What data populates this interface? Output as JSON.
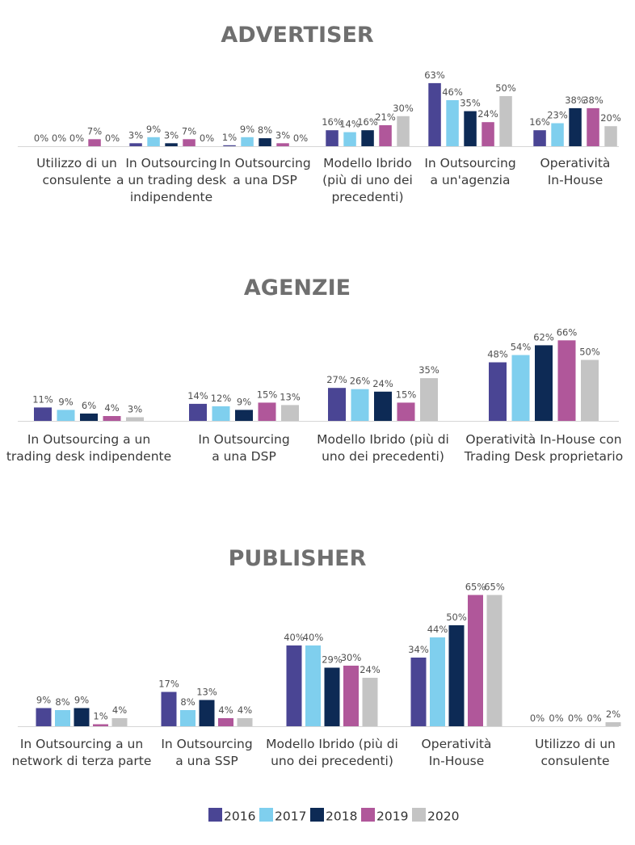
{
  "chart_data": [
    {
      "type": "bar",
      "title": "ADVERTISER",
      "categories": [
        [
          "Utilizzo di un",
          "consulente"
        ],
        [
          "In Outsourcing",
          "a un trading desk",
          "indipendente"
        ],
        [
          "In Outsourcing",
          "a una DSP"
        ],
        [
          "Modello Ibrido",
          "(più di uno dei",
          "precedenti)"
        ],
        [
          "In Outsourcing",
          "a un'agenzia"
        ],
        [
          "Operatività",
          "In-House"
        ]
      ],
      "series": [
        {
          "name": "2016",
          "values": [
            0,
            3,
            1,
            16,
            63,
            16
          ]
        },
        {
          "name": "2017",
          "values": [
            0,
            9,
            9,
            14,
            46,
            23
          ]
        },
        {
          "name": "2018",
          "values": [
            0,
            3,
            8,
            16,
            35,
            38
          ]
        },
        {
          "name": "2019",
          "values": [
            7,
            7,
            3,
            21,
            24,
            38
          ]
        },
        {
          "name": "2020",
          "values": [
            0,
            0,
            0,
            30,
            50,
            20
          ]
        }
      ],
      "unit": "%"
    },
    {
      "type": "bar",
      "title": "AGENZIE",
      "categories": [
        [
          "In Outsourcing a un",
          "trading desk indipendente"
        ],
        [
          "In Outsourcing",
          "a una DSP"
        ],
        [
          "Modello Ibrido (più di",
          "uno dei precedenti)"
        ],
        [
          "Operatività In-House con",
          "Trading Desk proprietario"
        ]
      ],
      "series": [
        {
          "name": "2016",
          "values": [
            11,
            14,
            27,
            48
          ]
        },
        {
          "name": "2017",
          "values": [
            9,
            12,
            26,
            54
          ]
        },
        {
          "name": "2018",
          "values": [
            6,
            9,
            24,
            62
          ]
        },
        {
          "name": "2019",
          "values": [
            4,
            15,
            15,
            66
          ]
        },
        {
          "name": "2020",
          "values": [
            3,
            13,
            35,
            50
          ]
        }
      ],
      "unit": "%"
    },
    {
      "type": "bar",
      "title": "PUBLISHER",
      "categories": [
        [
          "In Outsourcing a un",
          "network di terza parte"
        ],
        [
          "In Outsourcing",
          "a una SSP"
        ],
        [
          "Modello Ibrido (più di",
          "uno dei precedenti)"
        ],
        [
          "Operatività",
          "In-House"
        ],
        [
          "Utilizzo di un",
          "consulente"
        ]
      ],
      "series": [
        {
          "name": "2016",
          "values": [
            9,
            17,
            40,
            34,
            0
          ]
        },
        {
          "name": "2017",
          "values": [
            8,
            8,
            40,
            44,
            0
          ]
        },
        {
          "name": "2018",
          "values": [
            9,
            13,
            29,
            50,
            0
          ]
        },
        {
          "name": "2019",
          "values": [
            1,
            4,
            30,
            65,
            0
          ]
        },
        {
          "name": "2020",
          "values": [
            4,
            4,
            24,
            65,
            2
          ]
        }
      ],
      "unit": "%"
    }
  ],
  "legend": {
    "position": "bottom",
    "items": [
      {
        "label": "2016",
        "color": "#4a4594"
      },
      {
        "label": "2017",
        "color": "#7fcfee"
      },
      {
        "label": "2018",
        "color": "#0d2a55"
      },
      {
        "label": "2019",
        "color": "#b0579a"
      },
      {
        "label": "2020",
        "color": "#c4c4c4"
      }
    ]
  }
}
